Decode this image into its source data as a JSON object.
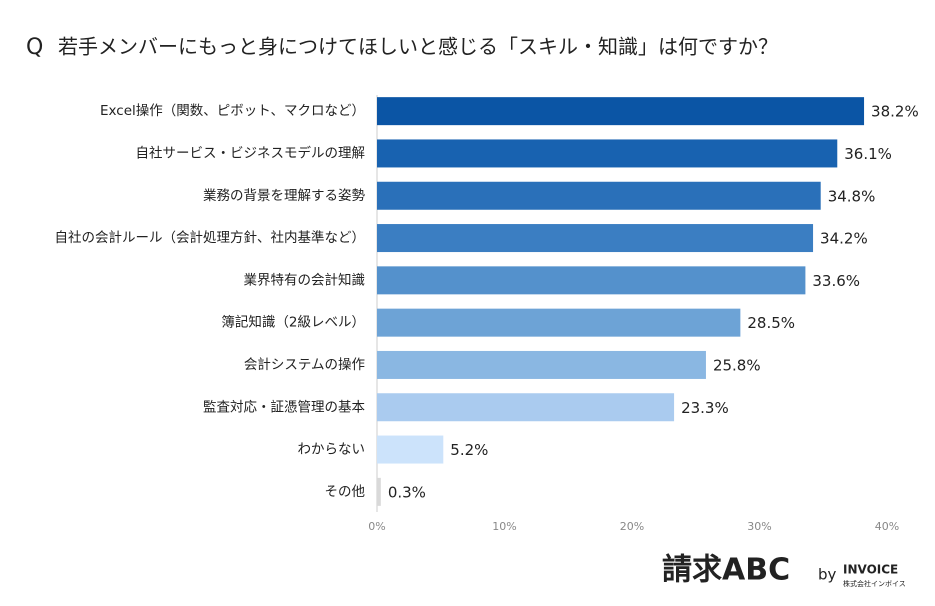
{
  "chart_data": {
    "type": "bar",
    "orientation": "horizontal",
    "title_prefix": "Q",
    "title": "若手メンバーにもっと身につけてほしいと感じる「スキル・知識」は何ですか？",
    "categories": [
      "Excel操作（関数、ピボット、マクロなど）",
      "自社サービス・ビジネスモデルの理解",
      "業務の背景を理解する姿勢",
      "自社の会計ルール（会計処理方針、社内基準など）",
      "業界特有の会計知識",
      "簿記知識（2級レベル）",
      "会計システムの操作",
      "監査対応・証憑管理の基本",
      "わからない",
      "その他"
    ],
    "values": [
      38.2,
      36.1,
      34.8,
      34.2,
      33.6,
      28.5,
      25.8,
      23.3,
      5.2,
      0.3
    ],
    "value_labels": [
      "38.2%",
      "36.1%",
      "34.8%",
      "34.2%",
      "33.6%",
      "28.5%",
      "25.8%",
      "23.3%",
      "5.2%",
      "0.3%"
    ],
    "colors": [
      "#0b55a5",
      "#1862b0",
      "#2a70b9",
      "#3b7ec2",
      "#5491cc",
      "#6da3d6",
      "#8ab7e2",
      "#aacbef",
      "#cce3fb",
      "#d9d9d9"
    ],
    "xlim": [
      0,
      40
    ],
    "xticks": [
      {
        "value": 0,
        "label": "0%"
      },
      {
        "value": 10,
        "label": "10%"
      },
      {
        "value": 20,
        "label": "20%"
      },
      {
        "value": 30,
        "label": "30%"
      },
      {
        "value": 40,
        "label": "40%"
      }
    ]
  },
  "logo": {
    "name": "請求ABC",
    "by": "by",
    "company": "INVOICE",
    "company_jp": "株式会社インボイス"
  }
}
